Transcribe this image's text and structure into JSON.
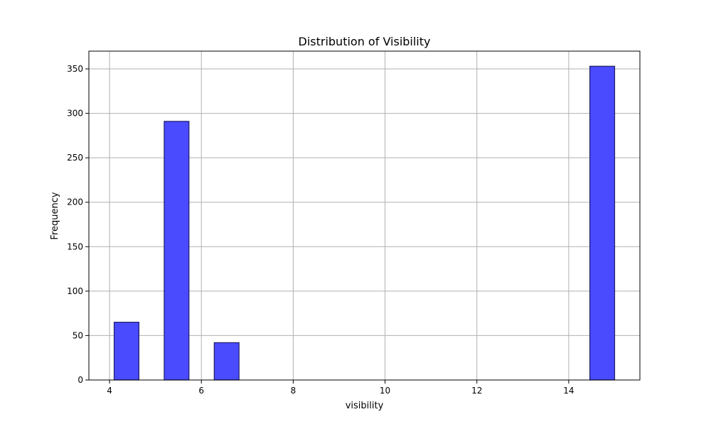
{
  "chart_data": {
    "type": "bar",
    "title": "Distribution of Visibility",
    "xlabel": "visibility",
    "ylabel": "Frequency",
    "xlim": [
      3.55,
      15.55
    ],
    "ylim": [
      0,
      370
    ],
    "xticks": [
      4,
      6,
      8,
      10,
      12,
      14
    ],
    "yticks": [
      0,
      50,
      100,
      150,
      200,
      250,
      300,
      350
    ],
    "grid": true,
    "bar_color": "#4a4aff",
    "bar_edge_color": "#1f1f66",
    "bins": [
      {
        "start": 4.1,
        "end": 4.64,
        "count": 65
      },
      {
        "start": 5.19,
        "end": 5.73,
        "count": 291
      },
      {
        "start": 6.28,
        "end": 6.82,
        "count": 42
      },
      {
        "start": 14.46,
        "end": 15.0,
        "count": 353
      }
    ]
  }
}
